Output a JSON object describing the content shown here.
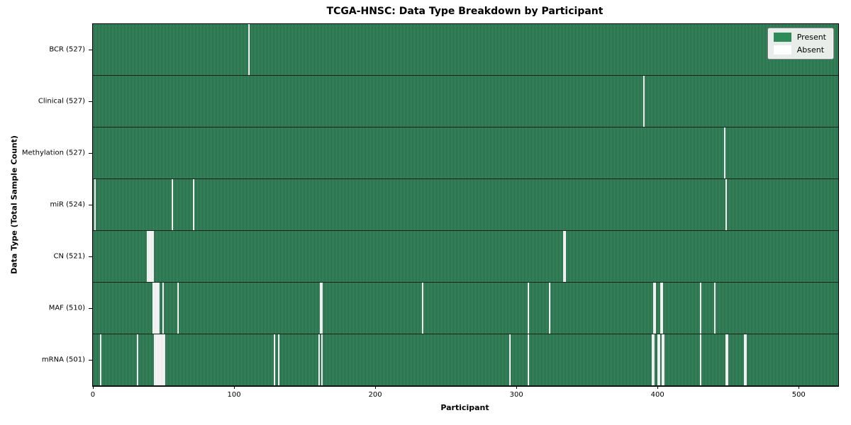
{
  "title": "TCGA-HNSC: Data Type Breakdown by Participant",
  "legend": {
    "present_label": "Present",
    "absent_label": "Absent"
  },
  "colors": {
    "stripe_dark": "#256647",
    "stripe_light": "#3c8f62",
    "absent": "#ffffff",
    "legend_green": "#2e8b57",
    "legend_bg": "#e9ede9"
  },
  "chart_data": {
    "type": "heatmap",
    "title": "TCGA-HNSC: Data Type Breakdown by Participant",
    "xlabel": "Participant",
    "ylabel": "Data Type (Total Sample Count)",
    "x_range": [
      0,
      528
    ],
    "x_ticks": [
      0,
      100,
      200,
      300,
      400,
      500
    ],
    "legend_entries": [
      "Present",
      "Absent"
    ],
    "legend_position": "upper right",
    "grid": false,
    "total_participants": 528,
    "rows": [
      {
        "label": "BCR (527)",
        "data_type": "BCR",
        "present_count": 527,
        "absent_count": 1,
        "absent_runs": [
          {
            "start": 110,
            "len": 1
          }
        ]
      },
      {
        "label": "Clinical (527)",
        "data_type": "Clinical",
        "present_count": 527,
        "absent_count": 1,
        "absent_runs": [
          {
            "start": 390,
            "len": 1
          }
        ]
      },
      {
        "label": "Methylation (527)",
        "data_type": "Methylation",
        "present_count": 527,
        "absent_count": 1,
        "absent_runs": [
          {
            "start": 447,
            "len": 1
          }
        ]
      },
      {
        "label": "miR (524)",
        "data_type": "miR",
        "present_count": 524,
        "absent_count": 4,
        "absent_runs": [
          {
            "start": 1,
            "len": 1
          },
          {
            "start": 56,
            "len": 1
          },
          {
            "start": 71,
            "len": 1
          },
          {
            "start": 448,
            "len": 1
          }
        ]
      },
      {
        "label": "CN (521)",
        "data_type": "CN",
        "present_count": 521,
        "absent_count": 7,
        "absent_runs": [
          {
            "start": 38,
            "len": 5
          },
          {
            "start": 333,
            "len": 2
          }
        ]
      },
      {
        "label": "MAF (510)",
        "data_type": "MAF",
        "present_count": 510,
        "absent_count": 18,
        "absent_runs": [
          {
            "start": 42,
            "len": 5
          },
          {
            "start": 49,
            "len": 1
          },
          {
            "start": 60,
            "len": 1
          },
          {
            "start": 161,
            "len": 2
          },
          {
            "start": 233,
            "len": 1
          },
          {
            "start": 308,
            "len": 1
          },
          {
            "start": 323,
            "len": 1
          },
          {
            "start": 397,
            "len": 2
          },
          {
            "start": 402,
            "len": 2
          },
          {
            "start": 430,
            "len": 1
          },
          {
            "start": 440,
            "len": 1
          }
        ]
      },
      {
        "label": "mRNA (501)",
        "data_type": "mRNA",
        "present_count": 501,
        "absent_count": 27,
        "absent_runs": [
          {
            "start": 5,
            "len": 1
          },
          {
            "start": 31,
            "len": 1
          },
          {
            "start": 43,
            "len": 8
          },
          {
            "start": 128,
            "len": 1
          },
          {
            "start": 131,
            "len": 1
          },
          {
            "start": 160,
            "len": 1
          },
          {
            "start": 162,
            "len": 1
          },
          {
            "start": 295,
            "len": 1
          },
          {
            "start": 308,
            "len": 1
          },
          {
            "start": 396,
            "len": 2
          },
          {
            "start": 400,
            "len": 2
          },
          {
            "start": 403,
            "len": 2
          },
          {
            "start": 430,
            "len": 1
          },
          {
            "start": 448,
            "len": 2
          },
          {
            "start": 461,
            "len": 2
          }
        ]
      }
    ]
  }
}
